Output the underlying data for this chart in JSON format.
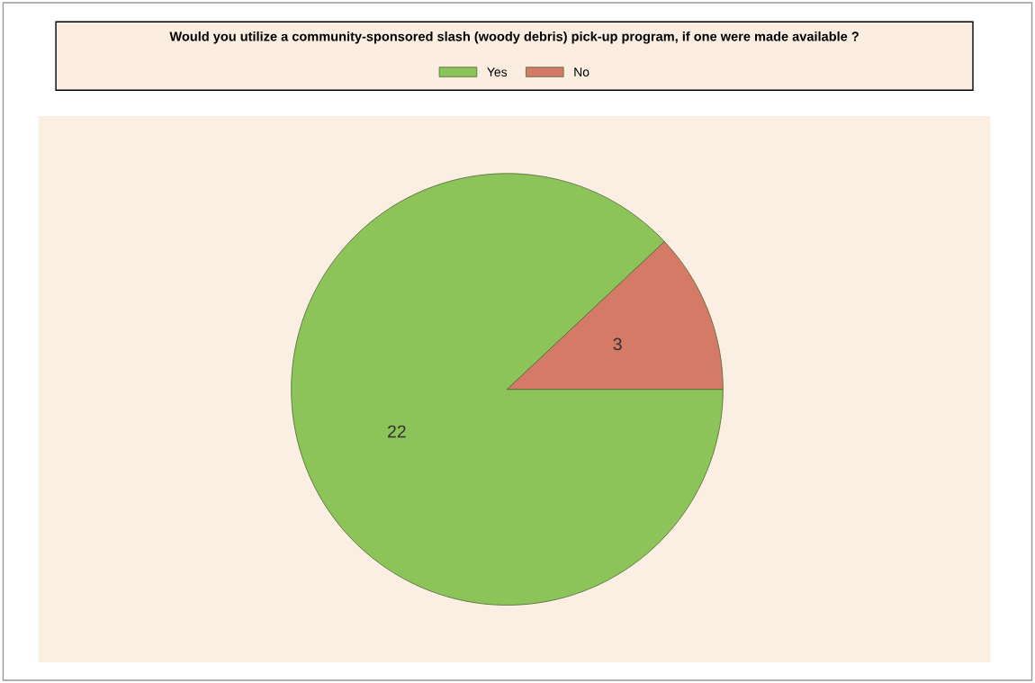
{
  "chart_data": {
    "type": "pie",
    "title": "Would you utilize a community-sponsored slash (woody debris) pick-up program, if one were made available ?",
    "categories": [
      "Yes",
      "No"
    ],
    "values": [
      22,
      3
    ],
    "colors": [
      "#8cc45a",
      "#d47a66"
    ],
    "data_labels": true,
    "legend": "top"
  }
}
